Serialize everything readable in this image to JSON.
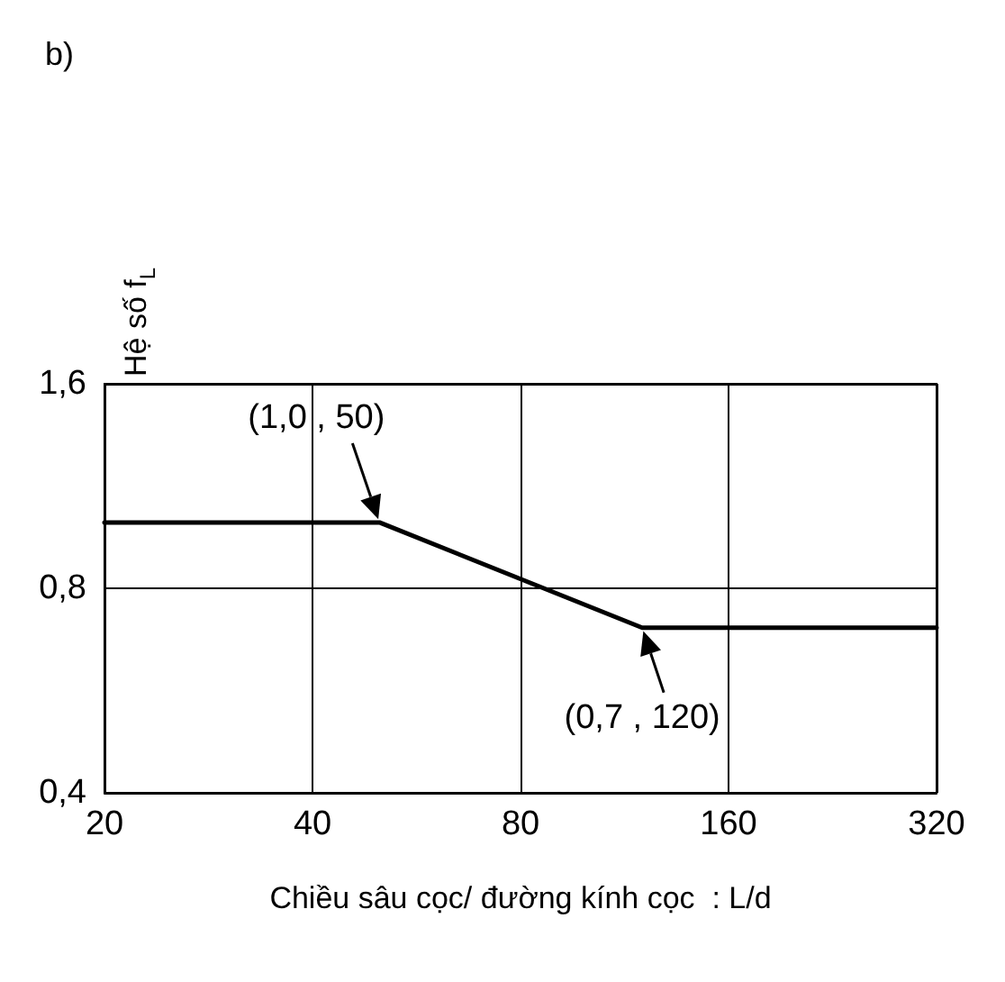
{
  "chart_data": {
    "type": "line",
    "title": "b)",
    "ylabel": "Hệ số f$_{L}$",
    "xlabel": "Chiều sâu cọc/ đường kính cọc  : L/d",
    "x": [
      20,
      50,
      120,
      320
    ],
    "series": [
      {
        "color": "#000000",
        "values": [
          1.0,
          1.0,
          0.7,
          0.7
        ]
      }
    ],
    "log": "xy",
    "grid": true,
    "marker": "none",
    "line_style": "solid",
    "xlim": [
      20,
      320
    ],
    "xticks": [
      20,
      40,
      80,
      160,
      320
    ],
    "ylim": [
      0.4,
      1.6
    ],
    "yticks": [
      {
        "value": 0.4,
        "label": "0,4"
      },
      {
        "value": 0.8,
        "label": "0,8"
      },
      {
        "value": 1.6,
        "label": "1,6"
      }
    ],
    "annotations": [
      {
        "text": "(1,0 , 50)",
        "x": 50,
        "y": 1.0
      },
      {
        "text": "(0,7 , 120)",
        "x": 120,
        "y": 0.7
      }
    ]
  }
}
